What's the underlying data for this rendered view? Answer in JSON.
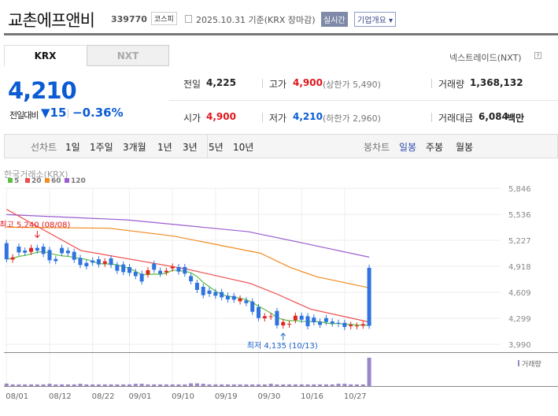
{
  "header": {
    "title": "교촌에프앤비",
    "code": "339770",
    "market": "코스피",
    "date": "2025.10.31 기준(KRX 장마감)",
    "realtime": "실시간",
    "corp_info": "기업개요 ▾"
  },
  "tabs": [
    {
      "label": "KRX",
      "active": true
    },
    {
      "label": "NXT",
      "active": false
    }
  ],
  "nxt_label": "넥스트레이드(NXT)",
  "nxt_help": "?",
  "quote": {
    "price": "4,210",
    "change_label": "전일대비",
    "change": "▼15",
    "change_pct": "−0.36%",
    "prev_label": "전일",
    "prev": "4,225",
    "high_label": "고가",
    "high": "4,900",
    "upper_limit": "(상한가 5,490)",
    "volume_label": "거래량",
    "volume": "1,368,132",
    "open_label": "시가",
    "open": "4,900",
    "low_label": "저가",
    "low": "4,210",
    "lower_limit": "(하한가 2,960)",
    "amount_label": "거래대금",
    "amount": "6,084",
    "amount_unit": "백만"
  },
  "toolbar": {
    "line_label": "선차트",
    "line_periods": [
      "1일",
      "1주일",
      "3개월",
      "1년",
      "3년",
      "5년",
      "10년"
    ],
    "candle_label": "봉차트",
    "candle_periods": [
      "일봉",
      "주봉",
      "월봉"
    ],
    "candle_active": "일봉"
  },
  "colors": {
    "up": "#e0251f",
    "down": "#2f73e0",
    "ma5": "#5cbf3f",
    "ma20": "#ef4b4b",
    "ma60": "#f28a1e",
    "ma120": "#9a5cd0",
    "volume": "#9b86c8"
  },
  "chart_data": {
    "type": "candlestick",
    "source": "한국거래소(KRX)",
    "legend": [
      "5",
      "20",
      "60",
      "120"
    ],
    "y_ticks": [
      5846,
      5536,
      5227,
      4918,
      4609,
      4299,
      3990
    ],
    "ylim": [
      3990,
      5846
    ],
    "x_ticks": [
      {
        "label": "08/01",
        "index": 0
      },
      {
        "label": "08/12",
        "index": 7
      },
      {
        "label": "08/22",
        "index": 14
      },
      {
        "label": "09/01",
        "index": 20
      },
      {
        "label": "09/10",
        "index": 27
      },
      {
        "label": "09/19",
        "index": 34
      },
      {
        "label": "09/30",
        "index": 41
      },
      {
        "label": "10/16",
        "index": 48
      },
      {
        "label": "10/27",
        "index": 55
      }
    ],
    "candles": [
      [
        5193,
        5002
      ],
      [
        4999,
        5024
      ],
      [
        5152,
        5083
      ],
      [
        5105,
        5080
      ],
      [
        5090,
        5137
      ],
      [
        5137,
        5105
      ],
      [
        5152,
        5065
      ],
      [
        5112,
        4990
      ],
      [
        5005,
        4980
      ],
      [
        5137,
        5074
      ],
      [
        5105,
        5074
      ],
      [
        5090,
        4996
      ],
      [
        5018,
        4934
      ],
      [
        4958,
        4918
      ],
      [
        4987,
        4962
      ],
      [
        5002,
        4940
      ],
      [
        4949,
        4977
      ],
      [
        5012,
        4934
      ],
      [
        4934,
        4865
      ],
      [
        4940,
        4849
      ],
      [
        4909,
        4840
      ],
      [
        4852,
        4802
      ],
      [
        4830,
        4737
      ],
      [
        4821,
        4871
      ],
      [
        4949,
        4877
      ],
      [
        4865,
        4830
      ],
      [
        4846,
        4865
      ],
      [
        4893,
        4915
      ],
      [
        4909,
        4855
      ],
      [
        4909,
        4830
      ],
      [
        4802,
        4740
      ],
      [
        4721,
        4637
      ],
      [
        4674,
        4574
      ],
      [
        4630,
        4590
      ],
      [
        4612,
        4568
      ],
      [
        4612,
        4549
      ],
      [
        4568,
        4524
      ],
      [
        4565,
        4521
      ],
      [
        4502,
        4534
      ],
      [
        4512,
        4480
      ],
      [
        4499,
        4377
      ],
      [
        4433,
        4302
      ],
      [
        4299,
        4324
      ],
      [
        4318,
        4324
      ],
      [
        4387,
        4215
      ],
      [
        4215,
        4255
      ],
      [
        4224,
        4234
      ],
      [
        4277,
        4330
      ],
      [
        4330,
        4283
      ],
      [
        4324,
        4205
      ],
      [
        4308,
        4252
      ],
      [
        4259,
        4221
      ],
      [
        4302,
        4255
      ],
      [
        4262,
        4237
      ],
      [
        4246,
        4234
      ],
      [
        4246,
        4196
      ],
      [
        4205,
        4221
      ],
      [
        4205,
        4212
      ],
      [
        4212,
        4230
      ],
      [
        4900,
        4210
      ]
    ],
    "ma20": [
      [
        0,
        5596
      ],
      [
        15,
        5396
      ],
      [
        37,
        5105
      ],
      [
        63,
        4996
      ],
      [
        89,
        4887
      ],
      [
        121,
        4715
      ],
      [
        134,
        4590
      ],
      [
        151,
        4408
      ],
      [
        180,
        4255
      ]
    ],
    "ma60": [
      [
        0,
        5383
      ],
      [
        51,
        5371
      ],
      [
        83,
        5277
      ],
      [
        126,
        5074
      ],
      [
        141,
        4902
      ],
      [
        154,
        4793
      ],
      [
        180,
        4662
      ]
    ],
    "ma120": [
      [
        0,
        5533
      ],
      [
        60,
        5470
      ],
      [
        120,
        5330
      ],
      [
        150,
        5180
      ],
      [
        180,
        5027
      ]
    ],
    "volume": [
      120000,
      80000,
      80000,
      80000,
      80000,
      80000,
      80000,
      110000,
      80000,
      80000,
      80000,
      80000,
      110000,
      80000,
      80000,
      80000,
      80000,
      80000,
      80000,
      80000,
      80000,
      110000,
      110000,
      80000,
      80000,
      80000,
      80000,
      80000,
      80000,
      80000,
      130000,
      130000,
      110000,
      80000,
      80000,
      80000,
      80000,
      80000,
      80000,
      80000,
      80000,
      80000,
      80000,
      110000,
      80000,
      80000,
      80000,
      80000,
      80000,
      80000,
      80000,
      80000,
      80000,
      80000,
      110000,
      110000,
      80000,
      80000,
      80000,
      1368132
    ],
    "volume_label": "거래량",
    "annotations": {
      "high": "최고 5,240 (08/08)",
      "high_index": 5,
      "low": "최저 4,135 (10/13)",
      "low_index": 45
    }
  }
}
